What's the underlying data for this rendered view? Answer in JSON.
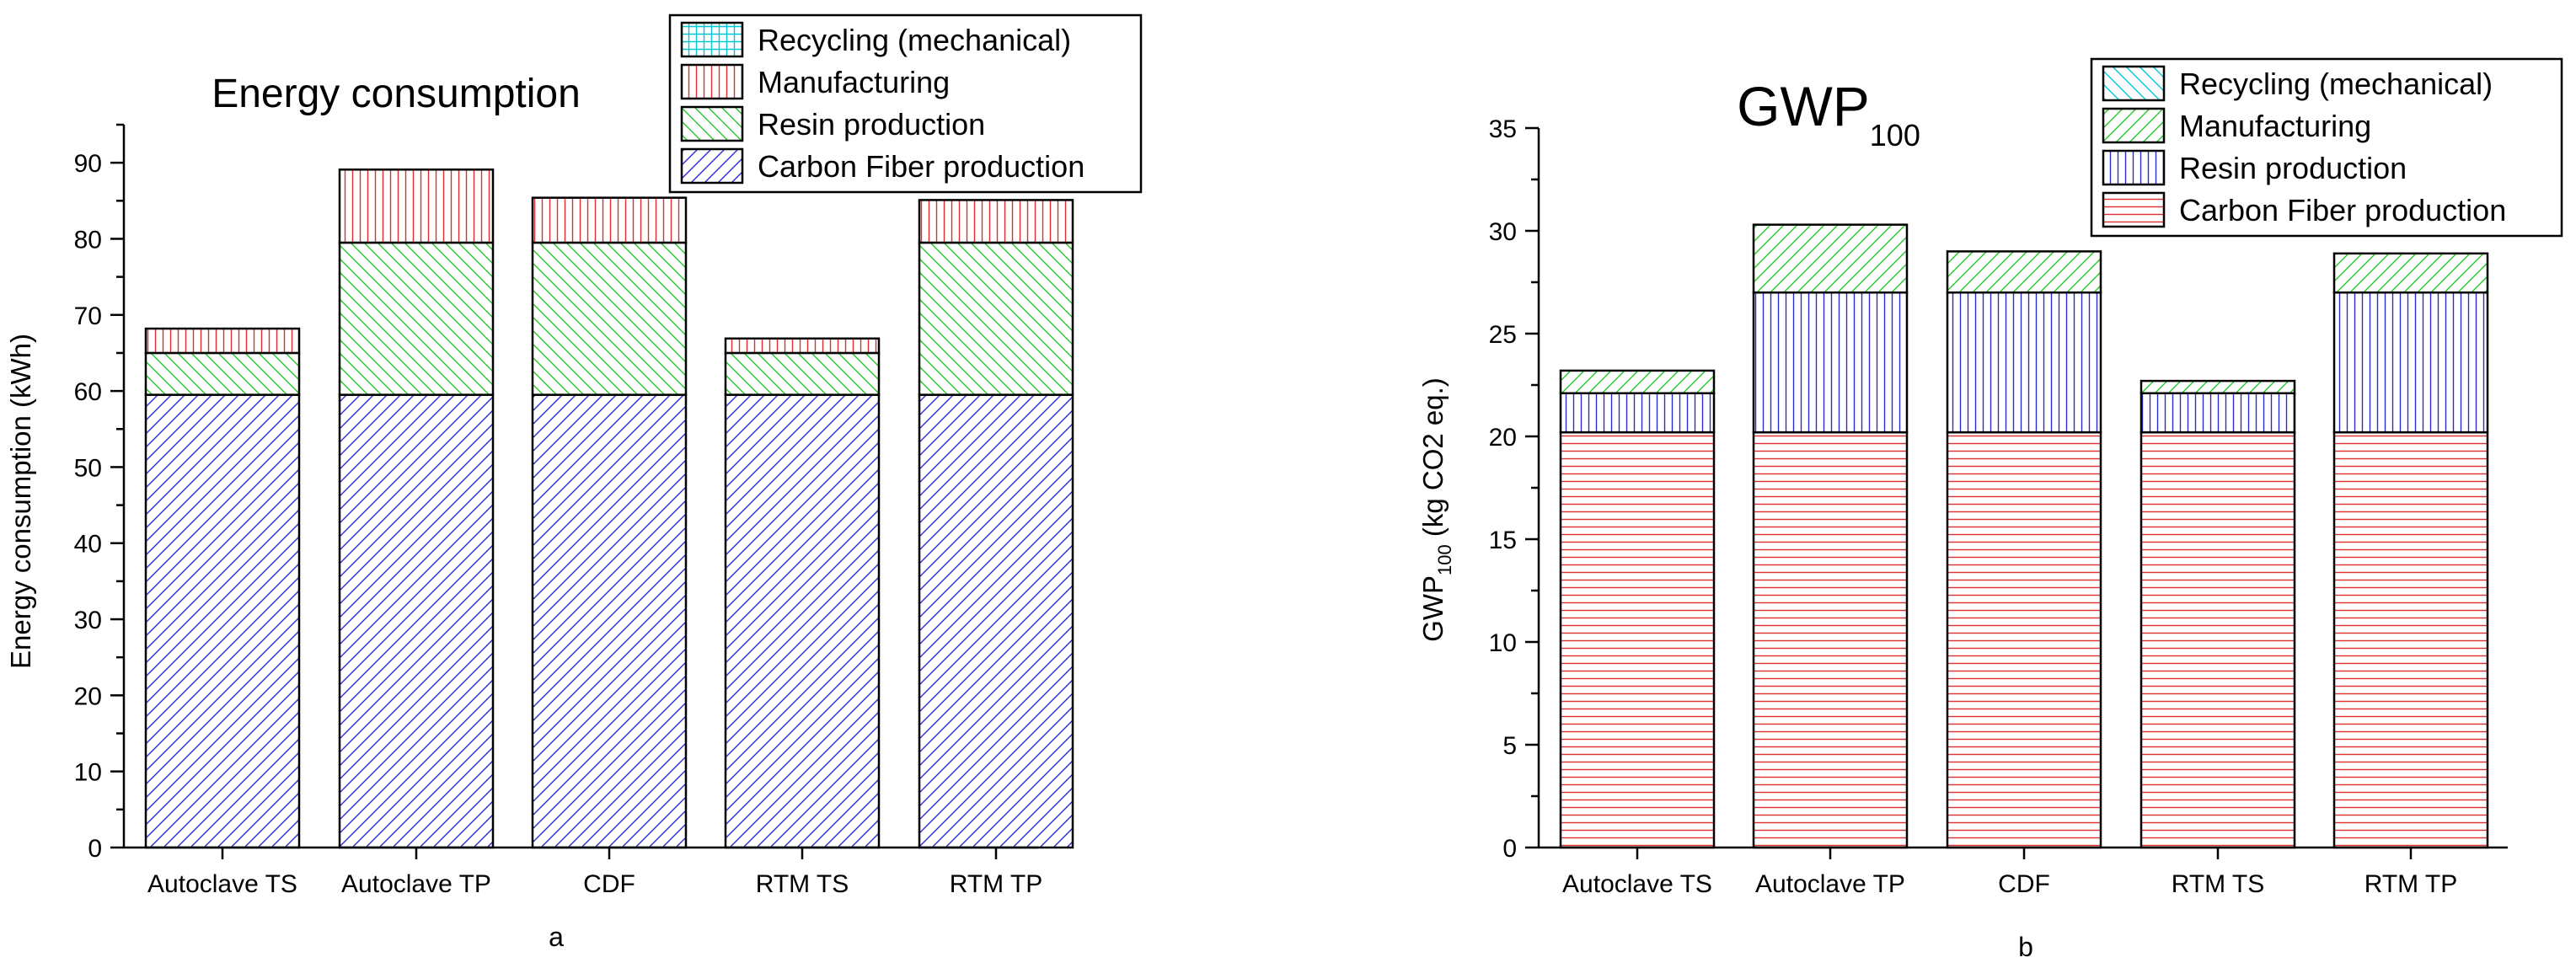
{
  "chart_data": [
    {
      "panel_id": "a",
      "type": "bar",
      "stacked": true,
      "title": "Energy consumption",
      "xlabel": "",
      "ylabel": "Energy consumption (kWh)",
      "panel_label": "a",
      "ylim": [
        0,
        95
      ],
      "yticks": [
        0,
        10,
        20,
        30,
        40,
        50,
        60,
        70,
        80,
        90
      ],
      "grid": false,
      "legend_position": "top-right",
      "categories": [
        "Autoclave TS",
        "Autoclave TP",
        "CDF",
        "RTM TS",
        "RTM TP"
      ],
      "series": [
        {
          "name": "Carbon Fiber production",
          "values": [
            59.5,
            59.5,
            59.5,
            59.5,
            59.5
          ],
          "color": "#2b2bd4",
          "pattern": "diag-right"
        },
        {
          "name": "Resin production",
          "values": [
            5.5,
            20,
            20,
            5.5,
            20
          ],
          "color": "#22cc22",
          "pattern": "diag-left"
        },
        {
          "name": "Manufacturing",
          "values": [
            3.2,
            9.6,
            5.9,
            1.9,
            5.6
          ],
          "color": "#e03030",
          "pattern": "vertical"
        },
        {
          "name": "Recycling (mechanical)",
          "values": [
            0,
            0,
            0,
            0,
            0
          ],
          "color": "#00c8d8",
          "pattern": "grid"
        }
      ],
      "legend_order": [
        "Recycling (mechanical)",
        "Manufacturing",
        "Resin production",
        "Carbon Fiber production"
      ]
    },
    {
      "panel_id": "b",
      "type": "bar",
      "stacked": true,
      "title": "GWP",
      "title_subscript": "100",
      "xlabel": "",
      "ylabel": "GWP",
      "ylabel_subscript": "100",
      "ylabel_suffix": " (kg CO2 eq.)",
      "panel_label": "b",
      "ylim": [
        0,
        35
      ],
      "yticks": [
        0,
        5,
        10,
        15,
        20,
        25,
        30,
        35
      ],
      "grid": false,
      "legend_position": "top-right",
      "categories": [
        "Autoclave TS",
        "Autoclave TP",
        "CDF",
        "RTM TS",
        "RTM TP"
      ],
      "series": [
        {
          "name": "Carbon Fiber production",
          "values": [
            20.2,
            20.2,
            20.2,
            20.2,
            20.2
          ],
          "color": "#e03030",
          "pattern": "horizontal"
        },
        {
          "name": "Resin production",
          "values": [
            1.9,
            6.8,
            6.8,
            1.9,
            6.8
          ],
          "color": "#2b2bd4",
          "pattern": "vertical"
        },
        {
          "name": "Manufacturing",
          "values": [
            1.1,
            3.3,
            2.0,
            0.6,
            1.9
          ],
          "color": "#22cc22",
          "pattern": "diag-right"
        },
        {
          "name": "Recycling (mechanical)",
          "values": [
            0,
            0,
            0,
            0,
            0
          ],
          "color": "#00c8d8",
          "pattern": "diag-left"
        }
      ],
      "legend_order": [
        "Recycling (mechanical)",
        "Manufacturing",
        "Resin production",
        "Carbon Fiber production"
      ]
    }
  ]
}
